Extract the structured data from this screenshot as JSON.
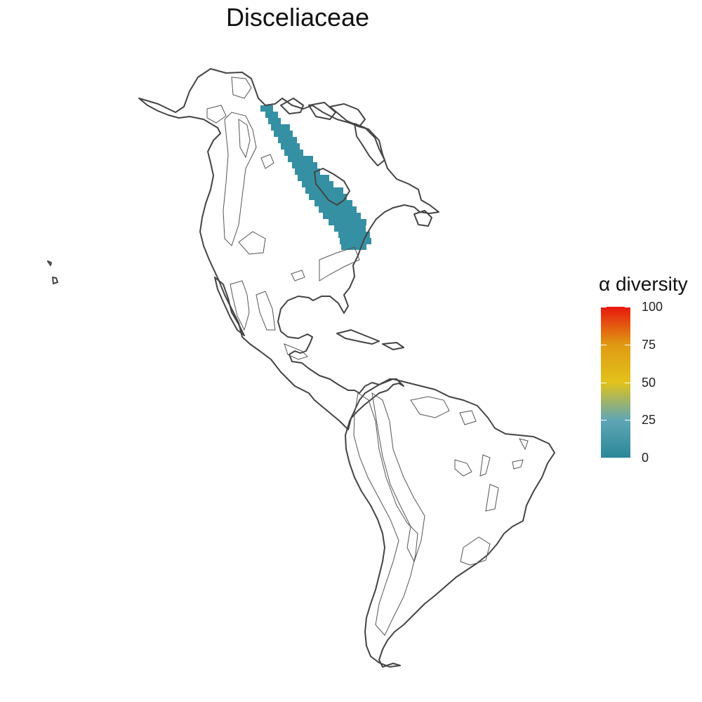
{
  "title": "Disceliaceae",
  "legend": {
    "title": "α diversity",
    "ticks": [
      "100",
      "75",
      "50",
      "25",
      "0"
    ],
    "tick_values": [
      100,
      75,
      50,
      25,
      0
    ],
    "colors": [
      "#e8170e",
      "#df9a12",
      "#e2c21b",
      "#5fa6b5",
      "#2a8797"
    ]
  },
  "map": {
    "region": "North and South America",
    "outline_color": "#444444",
    "cell_color": "#3690a3",
    "occupied_cells_value_range": [
      0,
      10
    ]
  }
}
